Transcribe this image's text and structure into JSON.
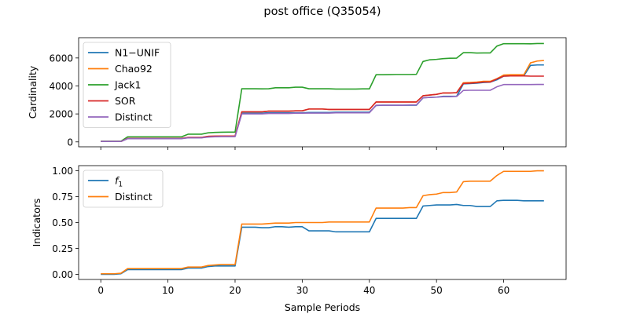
{
  "figure": {
    "title": "post office (Q35054)",
    "xlabel": "Sample Periods"
  },
  "chart_data": [
    {
      "type": "line",
      "ylabel": "Cardinality",
      "xlim": [
        -3.3,
        69.3
      ],
      "ylim": [
        -350,
        7450
      ],
      "xticks": [
        0,
        10,
        20,
        30,
        40,
        50,
        60
      ],
      "yticks": [
        0,
        2000,
        4000,
        6000
      ],
      "ytick_labels": [
        "0",
        "2000",
        "4000",
        "6000"
      ],
      "legend_position": "upper-left",
      "x": [
        0,
        1,
        2,
        3,
        4,
        5,
        6,
        7,
        8,
        9,
        10,
        11,
        12,
        13,
        14,
        15,
        16,
        17,
        18,
        19,
        20,
        21,
        22,
        23,
        24,
        25,
        26,
        27,
        28,
        29,
        30,
        31,
        32,
        33,
        34,
        35,
        36,
        37,
        38,
        39,
        40,
        41,
        42,
        43,
        44,
        45,
        46,
        47,
        48,
        49,
        50,
        51,
        52,
        53,
        54,
        55,
        56,
        57,
        58,
        59,
        60,
        61,
        62,
        63,
        64,
        65,
        66
      ],
      "series": [
        {
          "name": "N1−UNIF",
          "color": "#1f77b4",
          "values": [
            30,
            30,
            30,
            30,
            240,
            240,
            240,
            240,
            240,
            240,
            240,
            240,
            240,
            300,
            300,
            300,
            360,
            380,
            390,
            390,
            390,
            2050,
            2050,
            2050,
            2050,
            2080,
            2080,
            2080,
            2080,
            2080,
            2080,
            2100,
            2100,
            2100,
            2100,
            2120,
            2120,
            2120,
            2120,
            2120,
            2120,
            2600,
            2620,
            2620,
            2620,
            2620,
            2620,
            2620,
            3150,
            3180,
            3200,
            3260,
            3260,
            3260,
            4150,
            4170,
            4200,
            4250,
            4270,
            4440,
            4700,
            4720,
            4720,
            4720,
            5470,
            5500,
            5500
          ]
        },
        {
          "name": "Chao92",
          "color": "#ff7f0e",
          "values": [
            30,
            30,
            30,
            30,
            250,
            250,
            250,
            250,
            250,
            250,
            250,
            250,
            250,
            320,
            320,
            320,
            400,
            410,
            420,
            420,
            420,
            2150,
            2150,
            2150,
            2150,
            2200,
            2200,
            2200,
            2200,
            2220,
            2220,
            2350,
            2350,
            2350,
            2320,
            2320,
            2320,
            2320,
            2320,
            2320,
            2320,
            2850,
            2850,
            2850,
            2850,
            2850,
            2850,
            2850,
            3300,
            3350,
            3400,
            3500,
            3500,
            3520,
            4230,
            4250,
            4280,
            4330,
            4330,
            4520,
            4780,
            4800,
            4800,
            4800,
            5650,
            5780,
            5820
          ]
        },
        {
          "name": "Jack1",
          "color": "#2ca02c",
          "values": [
            50,
            50,
            50,
            50,
            360,
            360,
            360,
            360,
            360,
            360,
            360,
            360,
            360,
            550,
            550,
            550,
            650,
            680,
            690,
            700,
            700,
            3800,
            3800,
            3800,
            3790,
            3800,
            3870,
            3870,
            3870,
            3910,
            3910,
            3800,
            3800,
            3800,
            3800,
            3780,
            3780,
            3780,
            3780,
            3790,
            3790,
            4800,
            4800,
            4810,
            4820,
            4820,
            4820,
            4830,
            5750,
            5870,
            5900,
            5950,
            5980,
            5990,
            6380,
            6380,
            6350,
            6360,
            6360,
            6850,
            7020,
            7020,
            7020,
            7020,
            7010,
            7030,
            7030
          ]
        },
        {
          "name": "SOR",
          "color": "#d62728",
          "values": [
            30,
            30,
            30,
            30,
            250,
            250,
            250,
            250,
            250,
            250,
            250,
            250,
            250,
            320,
            320,
            320,
            400,
            410,
            420,
            420,
            420,
            2150,
            2150,
            2150,
            2150,
            2200,
            2200,
            2200,
            2200,
            2220,
            2220,
            2350,
            2350,
            2350,
            2320,
            2320,
            2320,
            2320,
            2320,
            2320,
            2320,
            2850,
            2850,
            2850,
            2850,
            2850,
            2850,
            2850,
            3300,
            3350,
            3400,
            3500,
            3500,
            3520,
            4180,
            4200,
            4230,
            4280,
            4280,
            4500,
            4700,
            4720,
            4720,
            4720,
            4700,
            4700,
            4700
          ]
        },
        {
          "name": "Distinct",
          "color": "#9467bd",
          "values": [
            30,
            30,
            30,
            30,
            230,
            230,
            230,
            230,
            230,
            230,
            230,
            230,
            230,
            290,
            290,
            290,
            350,
            370,
            380,
            380,
            380,
            2000,
            2000,
            2000,
            2000,
            2030,
            2030,
            2030,
            2030,
            2050,
            2050,
            2060,
            2060,
            2060,
            2060,
            2080,
            2080,
            2080,
            2080,
            2080,
            2080,
            2620,
            2620,
            2620,
            2620,
            2620,
            2640,
            2640,
            3150,
            3180,
            3200,
            3230,
            3230,
            3250,
            3680,
            3690,
            3690,
            3690,
            3690,
            3940,
            4100,
            4100,
            4100,
            4100,
            4100,
            4110,
            4110
          ]
        }
      ]
    },
    {
      "type": "line",
      "ylabel": "Indicators",
      "xlim": [
        -3.3,
        69.3
      ],
      "ylim": [
        -0.05,
        1.05
      ],
      "xticks": [
        0,
        10,
        20,
        30,
        40,
        50,
        60
      ],
      "xtick_labels": [
        "0",
        "10",
        "20",
        "30",
        "40",
        "50",
        "60"
      ],
      "yticks": [
        0,
        0.25,
        0.5,
        0.75,
        1.0
      ],
      "ytick_labels": [
        "0.00",
        "0.25",
        "0.50",
        "0.75",
        "1.00"
      ],
      "legend_position": "upper-left",
      "x": [
        0,
        1,
        2,
        3,
        4,
        5,
        6,
        7,
        8,
        9,
        10,
        11,
        12,
        13,
        14,
        15,
        16,
        17,
        18,
        19,
        20,
        21,
        22,
        23,
        24,
        25,
        26,
        27,
        28,
        29,
        30,
        31,
        32,
        33,
        34,
        35,
        36,
        37,
        38,
        39,
        40,
        41,
        42,
        43,
        44,
        45,
        46,
        47,
        48,
        49,
        50,
        51,
        52,
        53,
        54,
        55,
        56,
        57,
        58,
        59,
        60,
        61,
        62,
        63,
        64,
        65,
        66
      ],
      "series": [
        {
          "name": "f1",
          "legend_base": "f",
          "legend_sub": "1",
          "color": "#1f77b4",
          "values": [
            0.0,
            0.0,
            0.0,
            0.005,
            0.045,
            0.045,
            0.045,
            0.045,
            0.045,
            0.045,
            0.045,
            0.045,
            0.045,
            0.06,
            0.06,
            0.06,
            0.075,
            0.08,
            0.08,
            0.08,
            0.08,
            0.455,
            0.455,
            0.455,
            0.45,
            0.45,
            0.46,
            0.46,
            0.455,
            0.46,
            0.46,
            0.42,
            0.42,
            0.42,
            0.42,
            0.41,
            0.41,
            0.41,
            0.41,
            0.41,
            0.41,
            0.54,
            0.54,
            0.54,
            0.54,
            0.54,
            0.54,
            0.54,
            0.66,
            0.665,
            0.67,
            0.67,
            0.67,
            0.675,
            0.665,
            0.665,
            0.655,
            0.655,
            0.655,
            0.71,
            0.715,
            0.715,
            0.715,
            0.71,
            0.71,
            0.71,
            0.71
          ]
        },
        {
          "name": "Distinct",
          "color": "#ff7f0e",
          "values": [
            0.005,
            0.005,
            0.005,
            0.01,
            0.055,
            0.055,
            0.055,
            0.055,
            0.055,
            0.055,
            0.055,
            0.055,
            0.055,
            0.07,
            0.07,
            0.07,
            0.085,
            0.09,
            0.095,
            0.095,
            0.095,
            0.485,
            0.485,
            0.485,
            0.485,
            0.49,
            0.495,
            0.495,
            0.495,
            0.5,
            0.5,
            0.5,
            0.5,
            0.5,
            0.505,
            0.505,
            0.505,
            0.505,
            0.505,
            0.505,
            0.505,
            0.64,
            0.64,
            0.64,
            0.64,
            0.64,
            0.645,
            0.645,
            0.76,
            0.77,
            0.775,
            0.79,
            0.79,
            0.795,
            0.895,
            0.9,
            0.9,
            0.9,
            0.9,
            0.955,
            0.995,
            0.995,
            0.995,
            0.995,
            0.995,
            1.0,
            1.0
          ]
        }
      ]
    }
  ]
}
